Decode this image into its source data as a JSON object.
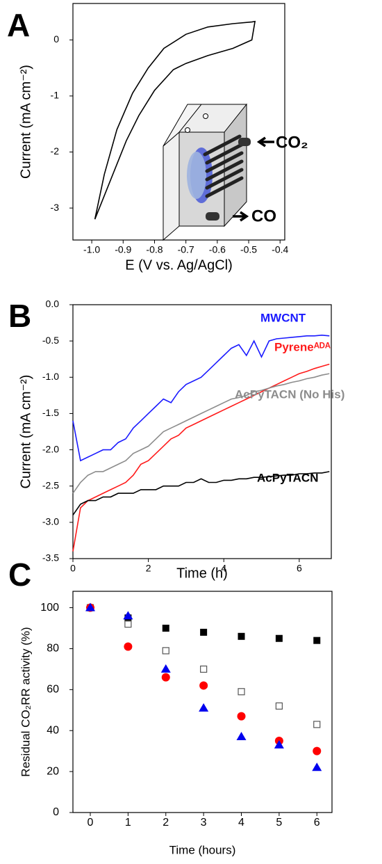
{
  "chart_data": [
    {
      "type": "line",
      "panel": "A",
      "xlabel": "E (V vs. Ag/AgCl)",
      "ylabel": "Current (mA cm⁻²)",
      "annotations": [
        "CO₂",
        "CO"
      ],
      "x": [
        -0.99,
        -0.96,
        -0.92,
        -0.87,
        -0.82,
        -0.77,
        -0.7,
        -0.63,
        -0.55,
        -0.49,
        -0.48,
        -0.49,
        -0.55,
        -0.63,
        -0.7,
        -0.74,
        -0.8,
        -0.85,
        -0.89,
        -0.94,
        -0.99
      ],
      "series": [
        {
          "color": "#000000",
          "values": [
            -3.2,
            -2.4,
            -1.6,
            -0.95,
            -0.5,
            -0.15,
            0.1,
            0.23,
            0.29,
            0.32,
            0.33,
            0.0,
            -0.15,
            -0.28,
            -0.42,
            -0.53,
            -0.9,
            -1.35,
            -1.8,
            -2.5,
            -3.2
          ]
        }
      ],
      "xlim": [
        -1.06,
        -0.385
      ],
      "ylim": [
        -3.57,
        0.65
      ],
      "xticks": [
        {
          "value": -1.0,
          "label": "-1.0"
        },
        -0.9,
        -0.8,
        -0.7,
        -0.6,
        -0.5,
        -0.4
      ],
      "yticks": [
        0,
        -1,
        -2,
        -3
      ]
    },
    {
      "type": "line",
      "panel": "B",
      "xlabel": "Time (h)",
      "ylabel": "Current (mA cm⁻²)",
      "x": [
        0,
        0.2,
        0.4,
        0.6,
        0.8,
        1.0,
        1.2,
        1.4,
        1.6,
        1.8,
        2.0,
        2.2,
        2.4,
        2.6,
        2.8,
        3.0,
        3.2,
        3.4,
        3.6,
        3.8,
        4.0,
        4.2,
        4.4,
        4.6,
        4.8,
        5.0,
        5.2,
        5.4,
        5.6,
        5.8,
        6.0,
        6.2,
        6.4,
        6.6,
        6.8
      ],
      "series": [
        {
          "name": "MWCNT",
          "color": "#1a1aff",
          "values": [
            -1.6,
            -2.15,
            -2.1,
            -2.05,
            -2.0,
            -2.0,
            -1.9,
            -1.85,
            -1.7,
            -1.6,
            -1.5,
            -1.4,
            -1.3,
            -1.35,
            -1.2,
            -1.1,
            -1.05,
            -1.0,
            -0.9,
            -0.8,
            -0.7,
            -0.6,
            -0.55,
            -0.7,
            -0.5,
            -0.72,
            -0.5,
            -0.47,
            -0.46,
            -0.45,
            -0.44,
            -0.43,
            -0.43,
            -0.42,
            -0.43
          ]
        },
        {
          "name": "Pyreneᴬᴰᴬ",
          "color": "#ff1a1a",
          "values": [
            -3.4,
            -2.8,
            -2.7,
            -2.65,
            -2.6,
            -2.55,
            -2.5,
            -2.45,
            -2.35,
            -2.2,
            -2.15,
            -2.05,
            -1.95,
            -1.85,
            -1.8,
            -1.7,
            -1.65,
            -1.6,
            -1.55,
            -1.5,
            -1.45,
            -1.4,
            -1.35,
            -1.3,
            -1.25,
            -1.2,
            -1.15,
            -1.1,
            -1.05,
            -1.0,
            -0.95,
            -0.92,
            -0.88,
            -0.85,
            -0.82
          ]
        },
        {
          "name": "AcPyTACN (No His)",
          "color": "#8c8c8c",
          "values": [
            -2.6,
            -2.45,
            -2.35,
            -2.3,
            -2.3,
            -2.25,
            -2.2,
            -2.15,
            -2.05,
            -2.0,
            -1.95,
            -1.85,
            -1.75,
            -1.7,
            -1.65,
            -1.6,
            -1.55,
            -1.5,
            -1.45,
            -1.4,
            -1.35,
            -1.3,
            -1.28,
            -1.25,
            -1.2,
            -1.18,
            -1.15,
            -1.12,
            -1.1,
            -1.07,
            -1.05,
            -1.02,
            -1.0,
            -0.97,
            -0.95
          ]
        },
        {
          "name": "AcPyTACN",
          "color": "#000000",
          "values": [
            -2.9,
            -2.75,
            -2.7,
            -2.7,
            -2.65,
            -2.65,
            -2.6,
            -2.6,
            -2.6,
            -2.55,
            -2.55,
            -2.55,
            -2.5,
            -2.5,
            -2.5,
            -2.45,
            -2.45,
            -2.4,
            -2.45,
            -2.45,
            -2.42,
            -2.42,
            -2.4,
            -2.4,
            -2.38,
            -2.38,
            -2.37,
            -2.36,
            -2.35,
            -2.35,
            -2.33,
            -2.33,
            -2.32,
            -2.32,
            -2.3
          ]
        }
      ],
      "xlim": [
        0,
        6.85
      ],
      "ylim": [
        -3.5,
        0
      ],
      "xticks": [
        0,
        2,
        4,
        6
      ],
      "yticks": [
        {
          "value": 0,
          "label": "0.0"
        },
        -0.5,
        {
          "value": -1,
          "label": "-1.0"
        },
        -1.5,
        {
          "value": -2,
          "label": "-2.0"
        },
        -2.5,
        {
          "value": -3,
          "label": "-3.0"
        },
        -3.5
      ]
    },
    {
      "type": "scatter",
      "panel": "C",
      "xlabel": "Time (hours)",
      "ylabel": "Residual CO₂RR activity (%)",
      "x": [
        0,
        1,
        2,
        3,
        4,
        5,
        6
      ],
      "series": [
        {
          "color": "#000000",
          "marker": "square",
          "values": [
            100,
            95,
            90,
            88,
            86,
            85,
            84
          ]
        },
        {
          "color": "#555555",
          "marker": "square-open",
          "values": [
            100,
            92,
            79,
            70,
            59,
            52,
            43
          ]
        },
        {
          "color": "#ff0000",
          "marker": "circle",
          "values": [
            100,
            81,
            66,
            62,
            47,
            35,
            30
          ]
        },
        {
          "color": "#0000ee",
          "marker": "triangle",
          "values": [
            100,
            96,
            70,
            51,
            37,
            33,
            22
          ]
        }
      ],
      "xlim": [
        -0.46,
        6.4
      ],
      "ylim": [
        0,
        108
      ],
      "xticks": [
        0,
        1,
        2,
        3,
        4,
        5,
        6
      ],
      "yticks": [
        0,
        20,
        40,
        60,
        80,
        100
      ]
    }
  ]
}
